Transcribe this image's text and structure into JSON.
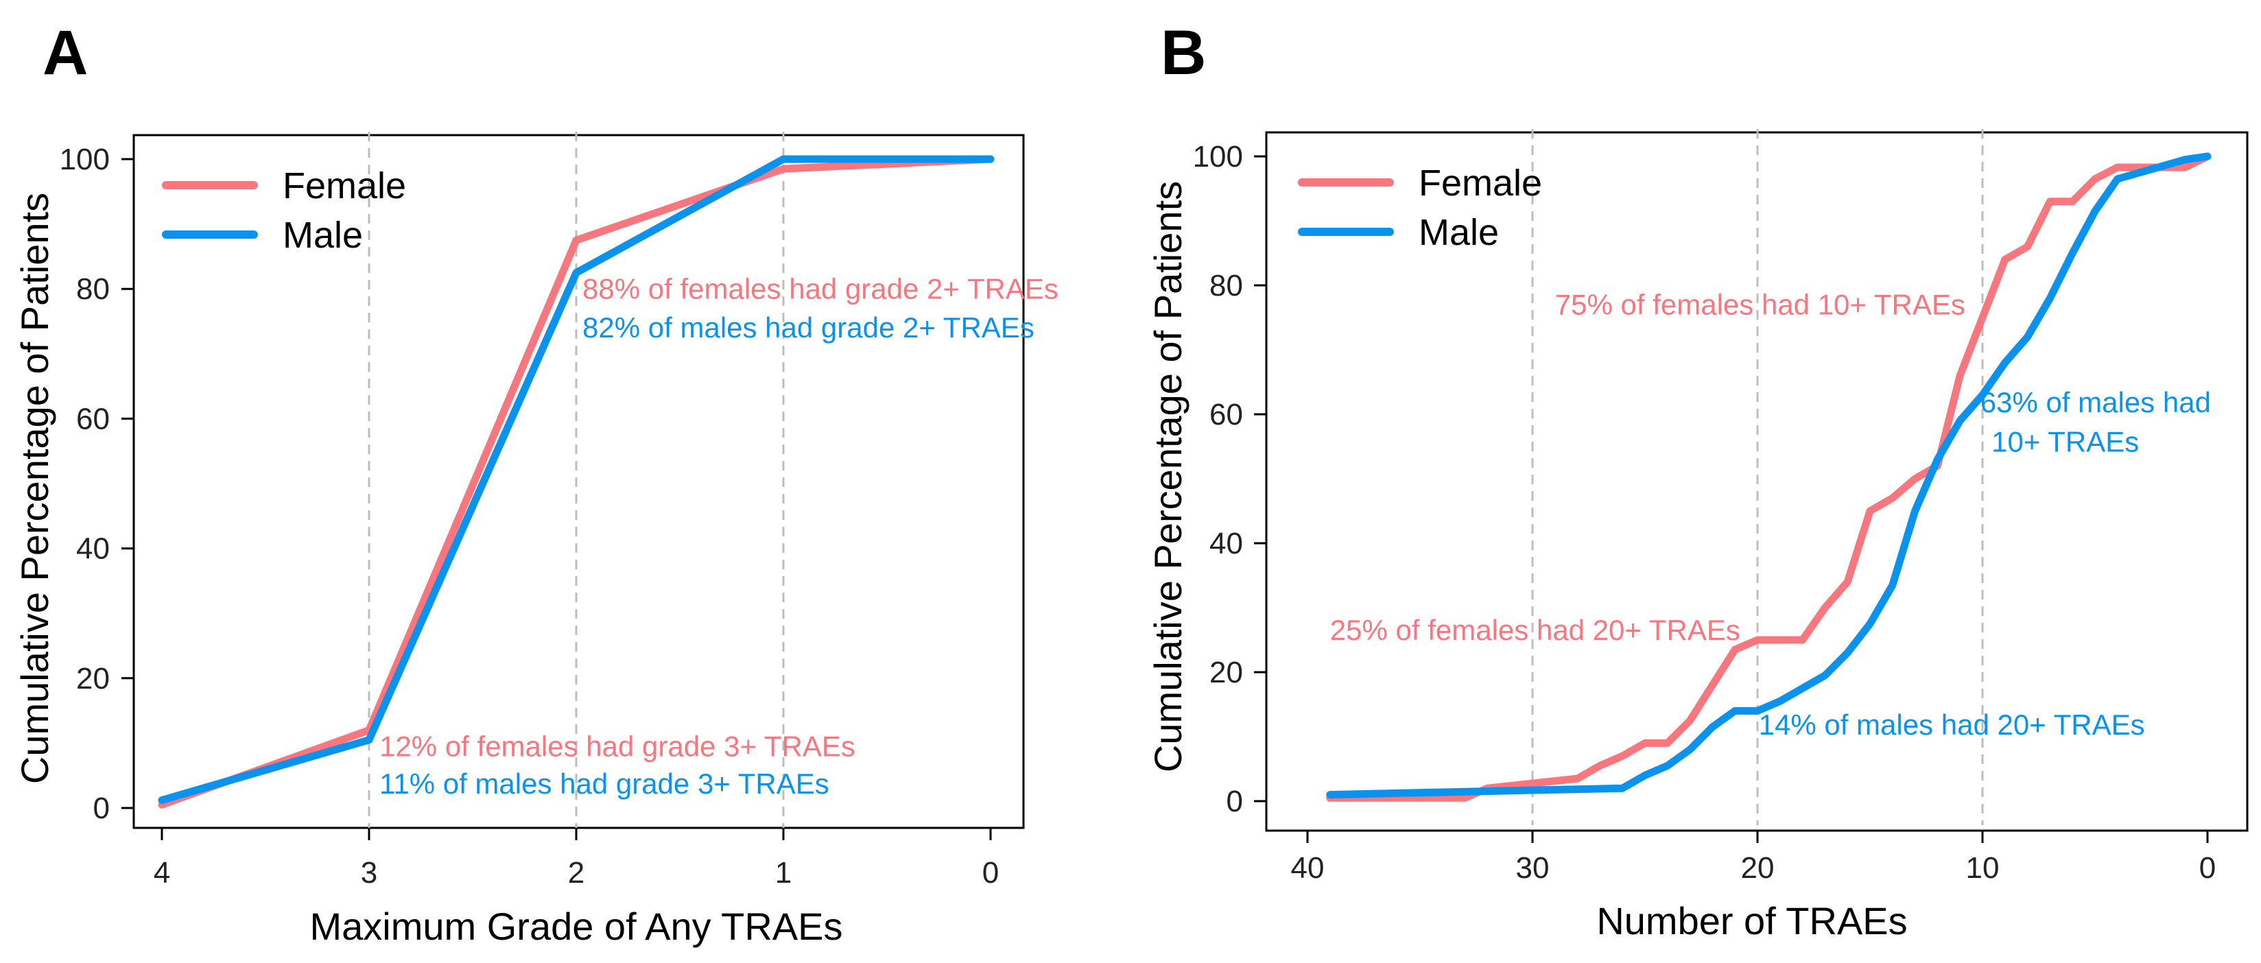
{
  "colors": {
    "female": "#F8767D",
    "male": "#0A93EE",
    "grid": "#BDBDBD",
    "axis": "#000000"
  },
  "chart_data": [
    {
      "panel": "A",
      "type": "line",
      "xlabel": "Maximum Grade of Any TRAEs",
      "ylabel": "Cumulative Percentage of Patients",
      "xlim": [
        4,
        0
      ],
      "ylim": [
        0,
        100
      ],
      "x_reversed": true,
      "xticks": [
        4,
        3,
        2,
        1,
        0
      ],
      "yticks": [
        0,
        20,
        40,
        60,
        80,
        100
      ],
      "vgrid": [
        3,
        2,
        1
      ],
      "legend": {
        "position": "top-left",
        "entries": [
          "Female",
          "Male"
        ]
      },
      "series": [
        {
          "name": "Female",
          "x": [
            4,
            3,
            2,
            1,
            0
          ],
          "values": [
            0.5,
            12,
            87.5,
            98.5,
            100
          ]
        },
        {
          "name": "Male",
          "x": [
            4,
            3,
            2,
            1,
            0
          ],
          "values": [
            1.2,
            10.5,
            82.5,
            100,
            100
          ]
        }
      ],
      "annotations": [
        {
          "text": "88% of females had grade 2+ TRAEs",
          "series": "Female",
          "x": 1.97,
          "y": 78.5
        },
        {
          "text": "82% of males had grade 2+ TRAEs",
          "series": "Male",
          "x": 1.97,
          "y": 72.5
        },
        {
          "text": "12% of females had grade 3+ TRAEs",
          "series": "Female",
          "x": 2.95,
          "y": 8
        },
        {
          "text": "11% of males had grade 3+ TRAEs",
          "series": "Male",
          "x": 2.95,
          "y": 2.2
        }
      ]
    },
    {
      "panel": "B",
      "type": "line",
      "xlabel": "Number of TRAEs",
      "ylabel": "Cumulative Percentage of Patients",
      "xlim": [
        40,
        0
      ],
      "ylim": [
        0,
        100
      ],
      "x_reversed": true,
      "xticks": [
        40,
        30,
        20,
        10,
        0
      ],
      "yticks": [
        0,
        20,
        40,
        60,
        80,
        100
      ],
      "vgrid": [
        30,
        20,
        10
      ],
      "legend": {
        "position": "top-left",
        "entries": [
          "Female",
          "Male"
        ]
      },
      "series": [
        {
          "name": "Female",
          "x": [
            39,
            33,
            32,
            28,
            27,
            26,
            25,
            24,
            23,
            22,
            21,
            20,
            19,
            18,
            17,
            16,
            15,
            14,
            13,
            12,
            11,
            10,
            9,
            8,
            7,
            6,
            5,
            4,
            3,
            2,
            1,
            0
          ],
          "values": [
            0.5,
            0.5,
            2,
            3.5,
            5.5,
            7,
            9,
            9,
            12.5,
            18,
            23.5,
            25,
            25,
            25,
            30,
            34,
            45,
            47,
            50,
            52,
            66,
            75,
            84,
            86,
            93,
            93,
            96.5,
            98.3,
            98.3,
            98.3,
            98.3,
            100
          ]
        },
        {
          "name": "Male",
          "x": [
            39,
            26,
            25,
            24,
            23,
            22,
            21,
            20,
            19,
            18,
            17,
            16,
            15,
            14,
            13,
            12,
            11,
            10,
            9,
            8,
            7,
            6,
            5,
            4,
            3,
            2,
            1,
            0
          ],
          "values": [
            1,
            2,
            4,
            5.5,
            8,
            11.5,
            14,
            14,
            15.5,
            17.5,
            19.5,
            23,
            27.5,
            33.5,
            45,
            53,
            59,
            63,
            68,
            72,
            78,
            85,
            91.5,
            96.5,
            97.5,
            98.5,
            99.5,
            100
          ]
        }
      ],
      "annotations": [
        {
          "text": "75% of females had 10+ TRAEs",
          "series": "Female",
          "x": 29,
          "y": 75.5
        },
        {
          "text": "63% of males had",
          "series": "Male",
          "x": 10.1,
          "y": 60.3
        },
        {
          "text": "10+ TRAEs",
          "series": "Male",
          "x": 9.6,
          "y": 54.2
        },
        {
          "text": "25% of females had 20+ TRAEs",
          "series": "Female",
          "x": 39,
          "y": 25
        },
        {
          "text": "14% of males had 20+ TRAEs",
          "series": "Male",
          "x": 19.95,
          "y": 10.3
        }
      ]
    }
  ]
}
